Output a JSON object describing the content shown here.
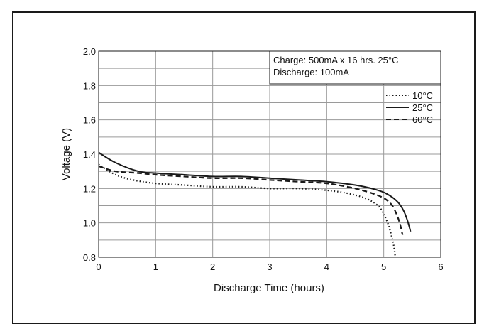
{
  "chart_data": {
    "type": "line",
    "title": "",
    "xlabel": "Discharge Time (hours)",
    "ylabel": "Voltage (V)",
    "xlim": [
      0,
      6
    ],
    "ylim": [
      0.8,
      2.0
    ],
    "xticks": [
      "0",
      "1",
      "2",
      "3",
      "4",
      "5",
      "6"
    ],
    "yticks": [
      "0.8",
      "1.0",
      "1.2",
      "1.4",
      "1.6",
      "1.8",
      "2.0"
    ],
    "grid": true,
    "legend_position": "top-right",
    "annotation": {
      "line1": "Charge: 500mA x 16 hrs. 25°C",
      "line2": "Discharge: 100mA"
    },
    "series": [
      {
        "name": "10°C",
        "style": "dotted",
        "color": "#1a1a1a",
        "x": [
          0,
          0.3,
          0.6,
          1.0,
          1.5,
          2.0,
          2.5,
          3.0,
          3.5,
          4.0,
          4.4,
          4.7,
          4.9,
          5.0,
          5.08,
          5.14,
          5.18,
          5.2
        ],
        "y": [
          1.34,
          1.28,
          1.25,
          1.23,
          1.22,
          1.21,
          1.21,
          1.2,
          1.2,
          1.19,
          1.17,
          1.14,
          1.1,
          1.05,
          0.99,
          0.92,
          0.86,
          0.81
        ]
      },
      {
        "name": "25°C",
        "style": "solid",
        "color": "#1a1a1a",
        "x": [
          0,
          0.3,
          0.7,
          1.0,
          1.5,
          2.0,
          2.5,
          3.0,
          3.5,
          4.0,
          4.5,
          4.9,
          5.1,
          5.25,
          5.35,
          5.42,
          5.47
        ],
        "y": [
          1.41,
          1.35,
          1.3,
          1.29,
          1.28,
          1.27,
          1.27,
          1.26,
          1.25,
          1.24,
          1.22,
          1.19,
          1.16,
          1.12,
          1.07,
          1.01,
          0.95
        ]
      },
      {
        "name": "60°C",
        "style": "dashed",
        "color": "#1a1a1a",
        "x": [
          0,
          0.3,
          0.7,
          1.0,
          1.5,
          2.0,
          2.5,
          3.0,
          3.5,
          4.0,
          4.5,
          4.9,
          5.1,
          5.2,
          5.28,
          5.33
        ],
        "y": [
          1.33,
          1.3,
          1.29,
          1.28,
          1.27,
          1.26,
          1.26,
          1.25,
          1.24,
          1.23,
          1.2,
          1.16,
          1.12,
          1.07,
          1.0,
          0.93
        ]
      }
    ]
  }
}
